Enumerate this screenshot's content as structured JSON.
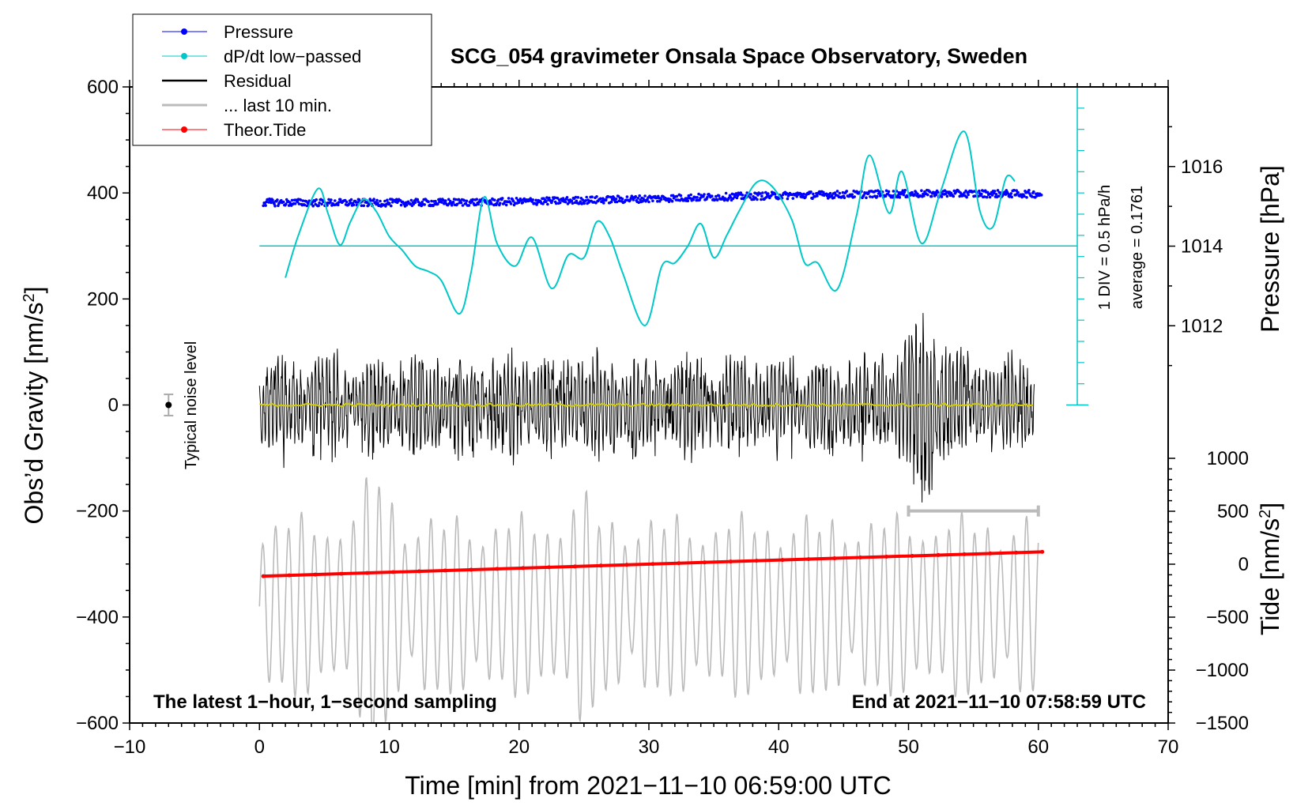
{
  "chart_data": {
    "type": "line",
    "title": "SCG_054 gravimeter Onsala Space Observatory, Sweden",
    "xlabel": "Time [min] from 2021−11−10 06:59:00 UTC",
    "ylabel_left": "Obs’d Gravity [nm/s",
    "ylabel_left_sup": "2",
    "ylabel_left_end": "]",
    "ylabel_right_pressure": "Pressure [hPa]",
    "ylabel_right_tide": "Tide [nm/s",
    "ylabel_right_tide_sup": "2",
    "ylabel_right_tide_end": "]",
    "xlim": [
      -10,
      70
    ],
    "ylim_left": [
      -600,
      600
    ],
    "xticks": [
      -10,
      0,
      10,
      20,
      30,
      40,
      50,
      60,
      70
    ],
    "xtick_labels": [
      "−10",
      "0",
      "10",
      "20",
      "30",
      "40",
      "50",
      "60",
      "70"
    ],
    "yticks_left": [
      600,
      400,
      200,
      0,
      -200,
      -400,
      -600
    ],
    "ytick_labels_left": [
      "600",
      "400",
      "200",
      "0",
      "−200",
      "−400",
      "−600"
    ],
    "pressure_axis": {
      "range_hpa": [
        1010,
        1018
      ],
      "ticks": [
        1016,
        1014,
        1012
      ],
      "tick_labels": [
        "1016",
        "1014",
        "1012"
      ]
    },
    "tide_axis": {
      "range": [
        -1500,
        1000
      ],
      "ticks": [
        1000,
        500,
        0,
        -500,
        -1000,
        -1500
      ],
      "tick_labels": [
        "1000",
        "500",
        "0",
        "−500",
        "−1000",
        "−1500"
      ]
    },
    "legend": [
      {
        "label": "Pressure",
        "color": "#0000ff",
        "marker": true
      },
      {
        "label": "dP/dt low−passed",
        "color": "#00c8c8",
        "marker": true
      },
      {
        "label": "Residual",
        "color": "#000000",
        "marker": false
      },
      {
        "label": "... last 10 min.",
        "color": "#bbbbbb",
        "marker": false
      },
      {
        "label": "Theor.Tide",
        "color": "#ff0000",
        "marker": true
      }
    ],
    "annotations": {
      "div_label": "1 DIV = 0.5 hPa/h",
      "average_label": "average = 0.1761",
      "noise_label": "Typical noise level",
      "bottom_left": "The latest 1−hour, 1−second sampling",
      "bottom_right": "End at 2021−11−10 07:58:59 UTC"
    },
    "series": [
      {
        "name": "Pressure",
        "color": "#0000ff",
        "unit": "hPa",
        "start": 1015.1,
        "end": 1015.3,
        "x_range": [
          0.3,
          60.3
        ]
      },
      {
        "name": "dP/dt low−passed",
        "color": "#00c8c8",
        "x": [
          2,
          3,
          4.5,
          5.3,
          6.2,
          7,
          8,
          9,
          10,
          11,
          12,
          13,
          14,
          15.4,
          16.3,
          17.3,
          18.3,
          19.7,
          21,
          22.5,
          23.8,
          25,
          26,
          27,
          28,
          29.7,
          31,
          32,
          33,
          34,
          35,
          36,
          37,
          38.3,
          39.5,
          41,
          42,
          43,
          44.5,
          46,
          47,
          48.5,
          49.5,
          51,
          52.5,
          54.3,
          55.5,
          56.5,
          57.5,
          58.2
        ],
        "y": [
          240,
          320,
          408,
          360,
          302,
          345,
          388,
          365,
          318,
          292,
          262,
          252,
          235,
          172,
          250,
          392,
          305,
          262,
          316,
          220,
          283,
          278,
          346,
          316,
          248,
          150,
          262,
          268,
          300,
          342,
          278,
          320,
          368,
          420,
          412,
          350,
          268,
          268,
          218,
          358,
          471,
          362,
          440,
          305,
          405,
          516,
          366,
          336,
          428,
          422
        ]
      },
      {
        "name": "Residual",
        "color": "#000000",
        "envelope_peak": 230,
        "envelope_trough": -225,
        "x_range": [
          0,
          59.7
        ]
      },
      {
        "name": "Residual mean",
        "color": "#d4cc00",
        "value": 0
      },
      {
        "name": "... last 10 min.",
        "color": "#bbbbbb",
        "center": -380,
        "peak_high": -130,
        "peak_low": -590,
        "x_range": [
          0,
          60
        ]
      },
      {
        "name": "Theor.Tide",
        "color": "#ff0000",
        "x": [
          0.3,
          60.3
        ],
        "y": [
          -323,
          -277
        ]
      }
    ],
    "markers": {
      "noise_level": {
        "x": -7,
        "y": 0,
        "err": 20
      },
      "last_10min_bar": {
        "x1": 50,
        "x2": 60,
        "y": -200
      },
      "pressure_zero_line": {
        "y": 300
      }
    }
  }
}
